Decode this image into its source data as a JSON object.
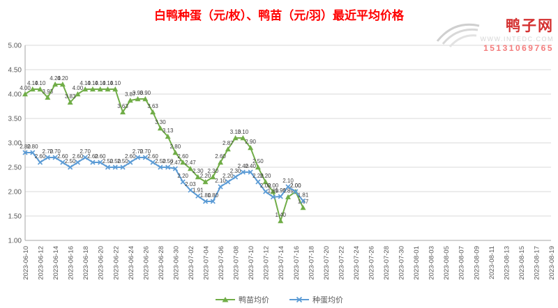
{
  "title": "白鸭种蛋（元/枚）、鸭苗（元/羽）最近平均价格",
  "watermark": {
    "site_name": "鸭子网",
    "url": "WWW.INTEDC.COM",
    "phone": "15131069765",
    "name_color": "#d43030",
    "url_color": "#d6d6d6",
    "phone_color": "#f37b7b"
  },
  "chart_data": {
    "type": "line",
    "title": "白鸭种蛋（元/枚）、鸭苗（元/羽）最近平均价格",
    "title_color": "#ff0000",
    "xlabel": "",
    "ylabel": "",
    "ylim": [
      1.0,
      5.0
    ],
    "grid": true,
    "legend_position": "bottom",
    "x_start": "2023-06-10",
    "x_end": "2023-08-19",
    "y_tick_labels": [
      "1.00",
      "1.50",
      "2.00",
      "2.50",
      "3.00",
      "3.50",
      "4.00",
      "4.50",
      "5.00"
    ],
    "x_tick_labels": [
      "2023-06-10",
      "2023-06-12",
      "2023-06-14",
      "2023-06-16",
      "2023-06-18",
      "2023-06-20",
      "2023-06-22",
      "2023-06-24",
      "2023-06-26",
      "2023-06-28",
      "2023-06-30",
      "2023-07-02",
      "2023-07-04",
      "2023-07-06",
      "2023-07-08",
      "2023-07-10",
      "2023-07-12",
      "2023-07-14",
      "2023-07-16",
      "2023-07-18",
      "2023-07-20",
      "2023-07-22",
      "2023-07-24",
      "2023-07-26",
      "2023-07-28",
      "2023-07-30",
      "2023-08-01",
      "2023-08-03",
      "2023-08-05",
      "2023-08-07",
      "2023-08-09",
      "2023-08-11",
      "2023-08-13",
      "2023-08-15",
      "2023-08-17",
      "2023-08-19"
    ],
    "dates": [
      "2023-06-10",
      "2023-06-11",
      "2023-06-12",
      "2023-06-13",
      "2023-06-14",
      "2023-06-15",
      "2023-06-16",
      "2023-06-17",
      "2023-06-18",
      "2023-06-19",
      "2023-06-20",
      "2023-06-21",
      "2023-06-22",
      "2023-06-23",
      "2023-06-24",
      "2023-06-25",
      "2023-06-26",
      "2023-06-27",
      "2023-06-28",
      "2023-06-29",
      "2023-06-30",
      "2023-07-01",
      "2023-07-02",
      "2023-07-03",
      "2023-07-04",
      "2023-07-05",
      "2023-07-06",
      "2023-07-07",
      "2023-07-08",
      "2023-07-09",
      "2023-07-10",
      "2023-07-11",
      "2023-07-12",
      "2023-07-13",
      "2023-07-14",
      "2023-07-15",
      "2023-07-16",
      "2023-07-17"
    ],
    "series": [
      {
        "name": "鸭苗均价",
        "color": "#70ad47",
        "marker": "triangle",
        "values": [
          4.0,
          4.1,
          4.1,
          3.93,
          4.2,
          4.2,
          3.83,
          4.0,
          4.1,
          4.1,
          4.1,
          4.1,
          4.1,
          3.63,
          3.87,
          3.9,
          3.9,
          3.63,
          3.3,
          3.13,
          2.8,
          2.6,
          2.47,
          2.3,
          2.2,
          2.3,
          2.6,
          2.87,
          3.1,
          3.1,
          2.9,
          2.5,
          2.2,
          2.0,
          1.4,
          1.89,
          2.0,
          1.67
        ]
      },
      {
        "name": "种蛋均价",
        "color": "#5b9bd5",
        "marker": "x",
        "values": [
          2.8,
          2.8,
          2.6,
          2.7,
          2.7,
          2.6,
          2.5,
          2.6,
          2.7,
          2.6,
          2.6,
          2.5,
          2.5,
          2.5,
          2.6,
          2.7,
          2.7,
          2.6,
          2.5,
          2.5,
          2.47,
          2.2,
          2.03,
          1.91,
          1.8,
          1.8,
          2.1,
          2.2,
          2.3,
          2.4,
          2.4,
          2.2,
          2.0,
          1.89,
          1.9,
          2.1,
          2.0,
          1.81
        ]
      }
    ],
    "grid_color": "#d9d9d9",
    "axis_color": "#a6a6a6",
    "tick_color": "#595959",
    "label_color": "#404040",
    "data_labels": true
  }
}
